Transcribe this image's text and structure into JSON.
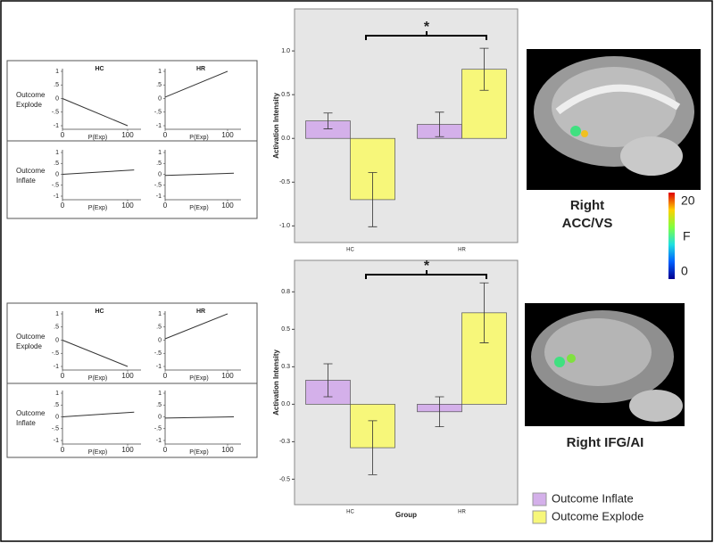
{
  "chart_data": [
    {
      "type": "bar",
      "categories": [
        "HC",
        "HR"
      ],
      "ylabel": "Activation Intensity",
      "annotation": "*",
      "ylim": [
        -1.19,
        1.48
      ],
      "yticks": [
        {
          "value": -1,
          "label": "-1.0"
        },
        {
          "value": -0.5,
          "label": "-0.5"
        },
        {
          "value": 0,
          "label": "0.0"
        },
        {
          "value": 0.5,
          "label": "0.5"
        },
        {
          "value": 1,
          "label": "1.0"
        }
      ],
      "series": [
        {
          "name": "Outcome Inflate",
          "color": "#d4b0ea",
          "values": [
            0.2,
            0.16
          ],
          "errors": [
            0.09,
            0.14
          ]
        },
        {
          "name": "Outcome Explode",
          "color": "#f7f77a",
          "values": [
            -0.7,
            0.79
          ],
          "errors": [
            0.31,
            0.24
          ]
        }
      ]
    },
    {
      "type": "bar",
      "categories": [
        "HC",
        "HR"
      ],
      "ylabel": "Activation Intensity",
      "xlabel": "Group",
      "annotation": "*",
      "ylim": [
        -0.67,
        0.96
      ],
      "yticks": [
        {
          "value": -0.5,
          "label": "-0.5"
        },
        {
          "value": -0.25,
          "label": "-0.3"
        },
        {
          "value": 0,
          "label": "0.0"
        },
        {
          "value": 0.25,
          "label": "0.3"
        },
        {
          "value": 0.5,
          "label": "0.5"
        },
        {
          "value": 0.75,
          "label": "0.8"
        }
      ],
      "series": [
        {
          "color": "#d4b0ea",
          "values": [
            0.16,
            -0.05
          ],
          "errors": [
            0.11,
            0.1
          ]
        },
        {
          "color": "#f7f77a",
          "values": [
            -0.29,
            0.61
          ],
          "errors": [
            0.18,
            0.2
          ]
        }
      ]
    },
    {
      "type": "line",
      "title": "HC",
      "ylabel": "Outcome Explode",
      "xlabel": "P(Exp)",
      "x": [
        0,
        100
      ],
      "values": [
        0,
        -1
      ],
      "xlim": [
        0,
        100
      ],
      "ylim": [
        -1,
        1
      ],
      "xticks": [
        0,
        100
      ],
      "yticks": [
        -1,
        {
          "value": -0.5,
          "label": "-.5"
        },
        0,
        {
          "value": 0.5,
          "label": ".5"
        },
        1
      ],
      "color": "#333333"
    },
    {
      "type": "line",
      "title": "HR",
      "xlabel": "P(Exp)",
      "x": [
        0,
        100
      ],
      "values": [
        0.05,
        1
      ],
      "xlim": [
        0,
        100
      ],
      "ylim": [
        -1,
        1
      ],
      "xticks": [
        0,
        100
      ],
      "yticks": [
        -1,
        {
          "value": -0.5,
          "label": "-.5"
        },
        0,
        {
          "value": 0.5,
          "label": ".5"
        },
        1
      ],
      "color": "#333333"
    },
    {
      "type": "line",
      "ylabel": "Outcome Inflate",
      "xlabel": "P(Exp)",
      "x": [
        0,
        110
      ],
      "values": [
        0,
        0.2
      ],
      "xlim": [
        0,
        100
      ],
      "ylim": [
        -1,
        1
      ],
      "xticks": [
        0,
        100
      ],
      "yticks": [
        -1,
        {
          "value": -0.5,
          "label": "-.5"
        },
        0,
        {
          "value": 0.5,
          "label": ".5"
        },
        1
      ],
      "color": "#333333"
    },
    {
      "type": "line",
      "xlabel": "P(Exp)",
      "x": [
        0,
        110
      ],
      "values": [
        -0.05,
        0.05
      ],
      "xlim": [
        0,
        100
      ],
      "ylim": [
        -1,
        1
      ],
      "xticks": [
        0,
        100
      ],
      "yticks": [
        -1,
        {
          "value": -0.5,
          "label": "-.5"
        },
        0,
        {
          "value": 0.5,
          "label": ".5"
        },
        1
      ],
      "color": "#333333"
    },
    {
      "type": "line",
      "title": "HC",
      "ylabel": "Outcome Explode",
      "xlabel": "P(Exp)",
      "x": [
        0,
        100
      ],
      "values": [
        0,
        -1
      ],
      "xlim": [
        0,
        100
      ],
      "ylim": [
        -1,
        1
      ],
      "xticks": [
        0,
        100
      ],
      "yticks": [
        -1,
        {
          "value": -0.5,
          "label": "-.5"
        },
        0,
        {
          "value": 0.5,
          "label": ".5"
        },
        1
      ],
      "color": "#333333"
    },
    {
      "type": "line",
      "title": "HR",
      "xlabel": "P(Exp)",
      "x": [
        0,
        100
      ],
      "values": [
        0.05,
        1
      ],
      "xlim": [
        0,
        100
      ],
      "ylim": [
        -1,
        1
      ],
      "xticks": [
        0,
        100
      ],
      "yticks": [
        -1,
        {
          "value": -0.5,
          "label": "-.5"
        },
        0,
        {
          "value": 0.5,
          "label": ".5"
        },
        1
      ],
      "color": "#333333"
    },
    {
      "type": "line",
      "ylabel": "Outcome Inflate",
      "xlabel": "P(Exp)",
      "x": [
        0,
        110
      ],
      "values": [
        0,
        0.2
      ],
      "xlim": [
        0,
        100
      ],
      "ylim": [
        -1,
        1
      ],
      "xticks": [
        0,
        100
      ],
      "yticks": [
        -1,
        {
          "value": -0.5,
          "label": "-.5"
        },
        0,
        {
          "value": 0.5,
          "label": ".5"
        },
        1
      ],
      "color": "#333333"
    },
    {
      "type": "line",
      "xlabel": "P(Exp)",
      "x": [
        0,
        110
      ],
      "values": [
        -0.05,
        0
      ],
      "xlim": [
        0,
        100
      ],
      "ylim": [
        -1,
        1
      ],
      "xticks": [
        0,
        100
      ],
      "yticks": [
        -1,
        {
          "value": -0.5,
          "label": "-.5"
        },
        0,
        {
          "value": 0.5,
          "label": ".5"
        },
        1
      ],
      "color": "#333333"
    }
  ],
  "regions": [
    {
      "label": "Right ACC/VS"
    },
    {
      "label": "Right IFG/AI"
    }
  ],
  "colorbar": {
    "label": "F",
    "lim": [
      0,
      20
    ],
    "ticks": [
      0,
      20
    ]
  }
}
